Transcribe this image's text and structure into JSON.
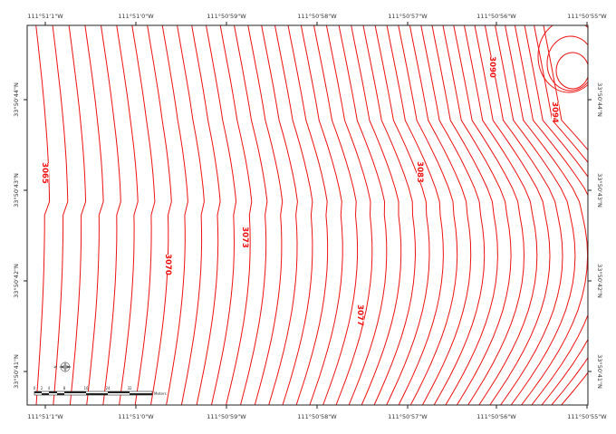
{
  "map": {
    "colors": {
      "contour": "#ee1111",
      "frame": "#222222",
      "tick_text": "#333333"
    },
    "top_labels": [
      "111°51'1\"W",
      "111°51'0\"W",
      "111°50'59\"W",
      "111°50'58\"W",
      "111°50'57\"W",
      "111°50'56\"W",
      "111°50'55\"W"
    ],
    "bottom_labels": [
      "111°51'1\"W",
      "111°51'0\"W",
      "111°50'59\"W",
      "111°50'58\"W",
      "111°50'57\"W",
      "111°50'56\"W",
      "111°50'55\"W"
    ],
    "left_labels": [
      "33°50'44\"N",
      "33°50'43\"N",
      "33°50'42\"N",
      "33°50'41\"N"
    ],
    "right_labels": [
      "33°50'44\"N",
      "33°50'43\"N",
      "33°50'42\"N",
      "33°50'41\"N"
    ],
    "contour_labels": [
      "3065",
      "3070",
      "3073",
      "3077",
      "3083",
      "3090",
      "3094"
    ],
    "scale_bar": {
      "ticks": [
        "0",
        "2",
        "4",
        "8",
        "16",
        "24",
        "32"
      ],
      "unit": "Meters"
    },
    "north_arrow_label": "N"
  }
}
